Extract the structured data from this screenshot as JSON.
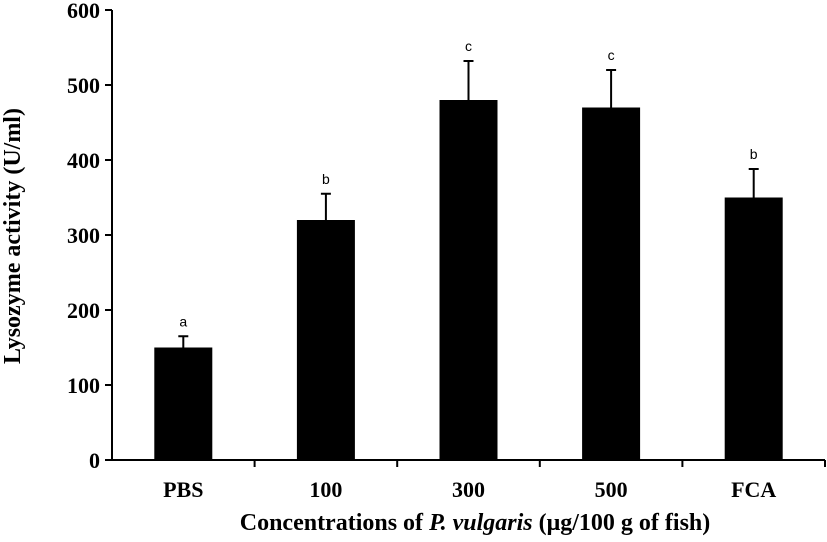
{
  "chart_data": {
    "type": "bar",
    "title": "",
    "categories": [
      "PBS",
      "100",
      "300",
      "500",
      "FCA"
    ],
    "values": [
      150,
      320,
      480,
      470,
      350
    ],
    "errors": [
      15,
      35,
      52,
      50,
      38
    ],
    "significance_letters": [
      "a",
      "b",
      "c",
      "c",
      "b"
    ],
    "xlabel": {
      "before": "Concentrations of ",
      "italic": "P. vulgaris",
      "after": " (μg/100 g of fish)"
    },
    "ylabel": "Lysozyme activity (U/ml)",
    "ylim": [
      0,
      600
    ],
    "yticks": [
      "0",
      "100",
      "200",
      "300",
      "400",
      "500",
      "600"
    ],
    "bar_color": "#000000",
    "grid": false,
    "legend": "none"
  }
}
